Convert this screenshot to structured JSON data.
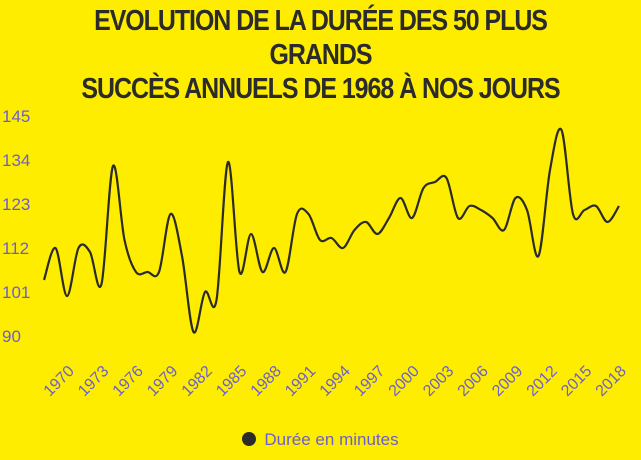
{
  "chart_data": {
    "type": "line",
    "title_line1": "EVOLUTION DE LA DURÉE DES 50 PLUS GRANDS",
    "title_line2": "SUCCÈS ANNUELS DE 1968 À NOS JOURS",
    "xlabel": "",
    "ylabel": "",
    "ylim": [
      90,
      145
    ],
    "yticks": [
      "90",
      "101",
      "112",
      "123",
      "134",
      "145"
    ],
    "xticks": [
      "1970",
      "1973",
      "1976",
      "1979",
      "1982",
      "1985",
      "1988",
      "1991",
      "1994",
      "1997",
      "2000",
      "2003",
      "2006",
      "2009",
      "2012",
      "2015",
      "2018"
    ],
    "x": [
      1968,
      1969,
      1970,
      1971,
      1972,
      1973,
      1974,
      1975,
      1976,
      1977,
      1978,
      1979,
      1980,
      1981,
      1982,
      1983,
      1984,
      1985,
      1986,
      1987,
      1988,
      1989,
      1990,
      1991,
      1992,
      1993,
      1994,
      1995,
      1996,
      1997,
      1998,
      1999,
      2000,
      2001,
      2002,
      2003,
      2004,
      2005,
      2006,
      2007,
      2008,
      2009,
      2010,
      2011,
      2012,
      2013,
      2014,
      2015,
      2016,
      2017,
      2018
    ],
    "series": [
      {
        "name": "Durée en minutes",
        "color": "#2b2b2b",
        "values": [
          104,
          112,
          100,
          112,
          111,
          103,
          132.5,
          114,
          106,
          106,
          106,
          120.5,
          110,
          91,
          101,
          99,
          133.5,
          106,
          115.5,
          106,
          112,
          106,
          120.5,
          120.5,
          114,
          114.5,
          112,
          116.5,
          118.5,
          115.5,
          119.5,
          124.5,
          119.5,
          127,
          128.5,
          129.5,
          119.5,
          122.5,
          121.5,
          119.5,
          116.5,
          124.5,
          121.5,
          110,
          131.5,
          141.5,
          120.5,
          121.5,
          122.5,
          118.5,
          122.5
        ]
      }
    ],
    "grid": false,
    "legend": "bottom-center",
    "colors": {
      "background": "#ffed00",
      "tick_text": "#6b5fd0"
    }
  }
}
